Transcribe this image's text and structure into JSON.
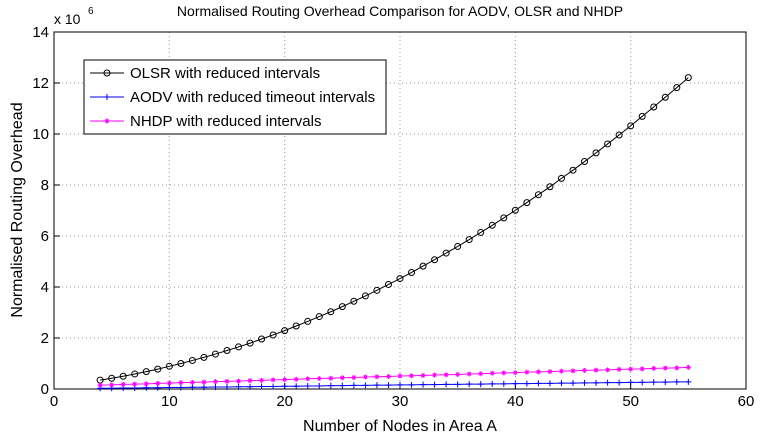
{
  "chart_data": {
    "type": "line",
    "title": "Normalised Routing Overhead Comparison for AODV, OLSR and NHDP",
    "x_label": "Number of Nodes in Area A",
    "y_label": "Normalised Routing Overhead",
    "y_multiplier": "x 10",
    "y_multiplier_exponent": "6",
    "xlim": [
      0,
      60
    ],
    "xticks": [
      0,
      10,
      20,
      30,
      40,
      50,
      60
    ],
    "ylim": [
      0,
      14
    ],
    "yticks": [
      0,
      2,
      4,
      6,
      8,
      10,
      12,
      14
    ],
    "grid": true,
    "legend": "upper left",
    "x": [
      4,
      5,
      6,
      7,
      8,
      9,
      10,
      11,
      12,
      13,
      14,
      15,
      16,
      17,
      18,
      19,
      20,
      21,
      22,
      23,
      24,
      25,
      26,
      27,
      28,
      29,
      30,
      31,
      32,
      33,
      34,
      35,
      36,
      37,
      38,
      39,
      40,
      41,
      42,
      43,
      44,
      45,
      46,
      47,
      48,
      49,
      50,
      51,
      52,
      53,
      54,
      55
    ],
    "series": [
      {
        "name": "OLSR with reduced intervals",
        "color": "#000000",
        "marker": "circle",
        "values": [
          0.35,
          0.42,
          0.5,
          0.59,
          0.68,
          0.78,
          0.89,
          1.0,
          1.12,
          1.24,
          1.37,
          1.51,
          1.65,
          1.8,
          1.96,
          2.12,
          2.29,
          2.47,
          2.65,
          2.84,
          3.03,
          3.23,
          3.44,
          3.65,
          3.87,
          4.1,
          4.33,
          4.57,
          4.82,
          5.07,
          5.33,
          5.59,
          5.86,
          6.14,
          6.42,
          6.71,
          7.01,
          7.31,
          7.62,
          7.93,
          8.26,
          8.58,
          8.92,
          9.26,
          9.61,
          9.96,
          10.32,
          10.69,
          11.06,
          11.44,
          11.82,
          12.21
        ]
      },
      {
        "name": "AODV with reduced timeout intervals",
        "color": "#0000ff",
        "marker": "plus",
        "values": [
          0.03,
          0.03,
          0.04,
          0.04,
          0.05,
          0.05,
          0.06,
          0.06,
          0.07,
          0.07,
          0.08,
          0.08,
          0.09,
          0.09,
          0.1,
          0.1,
          0.11,
          0.11,
          0.12,
          0.12,
          0.13,
          0.13,
          0.14,
          0.14,
          0.15,
          0.15,
          0.16,
          0.16,
          0.17,
          0.17,
          0.18,
          0.18,
          0.19,
          0.19,
          0.2,
          0.2,
          0.21,
          0.21,
          0.22,
          0.22,
          0.23,
          0.23,
          0.24,
          0.24,
          0.25,
          0.25,
          0.26,
          0.26,
          0.27,
          0.27,
          0.28,
          0.28
        ]
      },
      {
        "name": "NHDP with reduced intervals",
        "color": "#ff00ff",
        "marker": "star",
        "values": [
          0.15,
          0.16,
          0.18,
          0.19,
          0.2,
          0.22,
          0.23,
          0.25,
          0.26,
          0.27,
          0.29,
          0.3,
          0.31,
          0.33,
          0.34,
          0.36,
          0.37,
          0.38,
          0.4,
          0.41,
          0.42,
          0.44,
          0.45,
          0.47,
          0.48,
          0.49,
          0.51,
          0.52,
          0.53,
          0.55,
          0.56,
          0.57,
          0.59,
          0.6,
          0.62,
          0.63,
          0.64,
          0.66,
          0.67,
          0.68,
          0.7,
          0.71,
          0.73,
          0.74,
          0.75,
          0.77,
          0.78,
          0.79,
          0.81,
          0.82,
          0.83,
          0.85
        ]
      }
    ]
  }
}
